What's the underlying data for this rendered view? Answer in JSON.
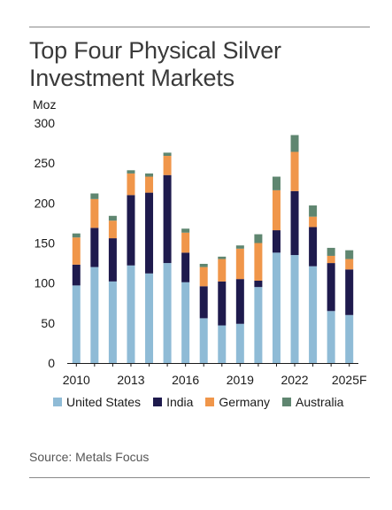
{
  "title": "Top Four Physical Silver Investment Markets",
  "source": "Source: Metals Focus",
  "chart_data": {
    "type": "bar",
    "stacked": true,
    "ylabel": "Moz",
    "ylim": [
      0,
      300
    ],
    "yticks": [
      0,
      50,
      100,
      150,
      200,
      250,
      300
    ],
    "categories": [
      "2010",
      "2011",
      "2012",
      "2013",
      "2014",
      "2015",
      "2016",
      "2017",
      "2018",
      "2019",
      "2020",
      "2021",
      "2022",
      "2023",
      "2024",
      "2025F"
    ],
    "xtick_labels": [
      "2010",
      "",
      "",
      "2013",
      "",
      "",
      "2016",
      "",
      "",
      "2019",
      "",
      "",
      "2022",
      "",
      "",
      "2025F"
    ],
    "legend_position": "bottom",
    "grid": false,
    "series": [
      {
        "name": "United States",
        "color": "#8fbbd6",
        "values": [
          97,
          120,
          102,
          122,
          112,
          125,
          101,
          56,
          47,
          49,
          95,
          138,
          135,
          121,
          65,
          60
        ]
      },
      {
        "name": "India",
        "color": "#1e1a4d",
        "values": [
          26,
          49,
          54,
          88,
          101,
          110,
          37,
          40,
          55,
          56,
          8,
          28,
          80,
          49,
          60,
          57
        ]
      },
      {
        "name": "Germany",
        "color": "#f0964a",
        "values": [
          34,
          36,
          22,
          27,
          20,
          24,
          25,
          24,
          28,
          38,
          47,
          50,
          49,
          13,
          9,
          13
        ]
      },
      {
        "name": "Australia",
        "color": "#5f8670",
        "values": [
          5,
          7,
          6,
          4,
          4,
          4,
          5,
          4,
          3,
          4,
          11,
          17,
          21,
          14,
          10,
          11
        ]
      }
    ]
  }
}
